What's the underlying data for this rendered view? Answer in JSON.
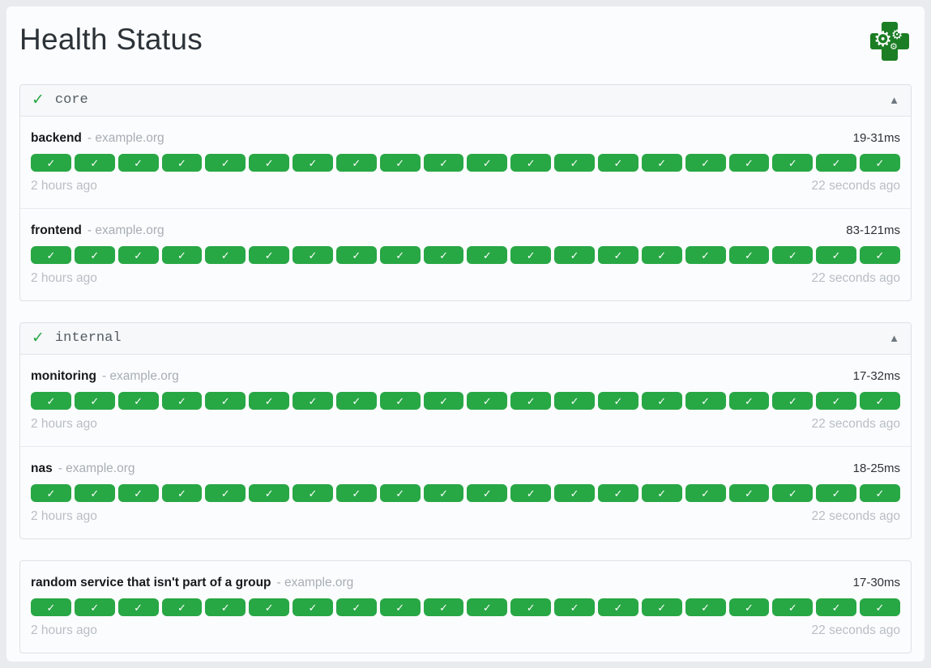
{
  "colors": {
    "success": "#28a745",
    "logo_green": "#1b7e24",
    "page_background": "#e9ebee",
    "card_background": "#fbfcfd"
  },
  "icons": {
    "badge_check": "✓",
    "group_check": "✓",
    "collapse_up": "▲",
    "logo_gear": "⚙"
  },
  "page": {
    "title": "Health Status"
  },
  "groups": [
    {
      "name": "core",
      "services": [
        {
          "name": "backend",
          "host": "- example.org",
          "response_time": "19-31ms",
          "oldest_result": "2 hours ago",
          "newest_result": "22 seconds ago",
          "results": {
            "count": 20,
            "status": "success"
          }
        },
        {
          "name": "frontend",
          "host": "- example.org",
          "response_time": "83-121ms",
          "oldest_result": "2 hours ago",
          "newest_result": "22 seconds ago",
          "results": {
            "count": 20,
            "status": "success"
          }
        }
      ]
    },
    {
      "name": "internal",
      "services": [
        {
          "name": "monitoring",
          "host": "- example.org",
          "response_time": "17-32ms",
          "oldest_result": "2 hours ago",
          "newest_result": "22 seconds ago",
          "results": {
            "count": 20,
            "status": "success"
          }
        },
        {
          "name": "nas",
          "host": "- example.org",
          "response_time": "18-25ms",
          "oldest_result": "2 hours ago",
          "newest_result": "22 seconds ago",
          "results": {
            "count": 20,
            "status": "success"
          }
        }
      ]
    }
  ],
  "ungrouped": {
    "services": [
      {
        "name": "random service that isn't part of a group",
        "host": "- example.org",
        "response_time": "17-30ms",
        "oldest_result": "2 hours ago",
        "newest_result": "22 seconds ago",
        "results": {
          "count": 20,
          "status": "success"
        }
      }
    ]
  }
}
